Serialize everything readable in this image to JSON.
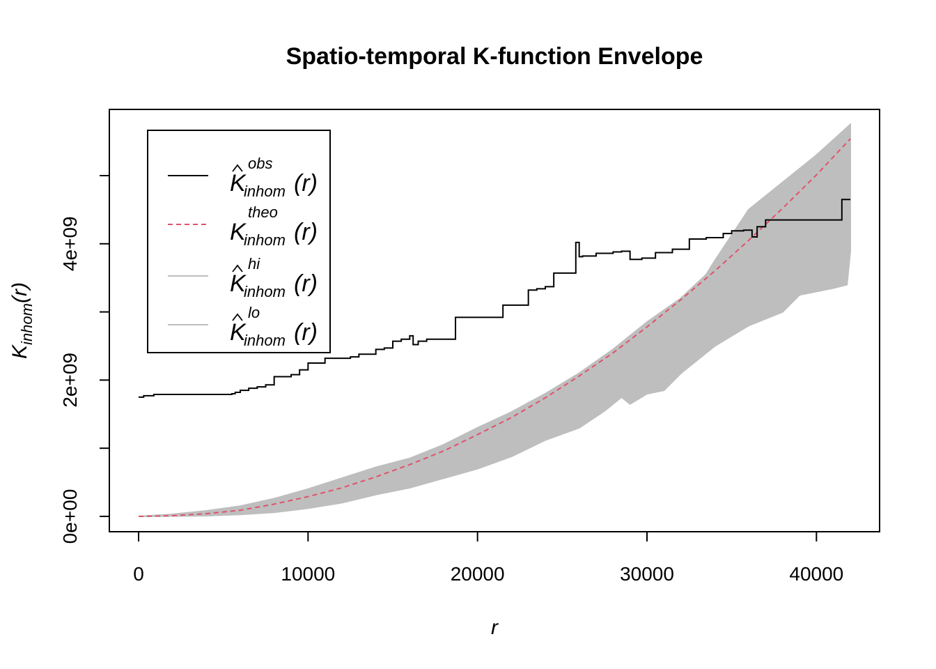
{
  "chart_data": {
    "type": "line",
    "title": "Spatio-temporal K-function Envelope",
    "xlabel": "r",
    "ylabel": {
      "base": "K",
      "sub": "inhom",
      "arg": "(r)"
    },
    "xlim": [
      0,
      42000
    ],
    "ylim": [
      0,
      5000000000
    ],
    "x_ticks": [
      0,
      10000,
      20000,
      30000,
      40000
    ],
    "x_tick_labels": [
      "0",
      "10000",
      "20000",
      "30000",
      "40000"
    ],
    "y_ticks": [
      0,
      1000000000,
      2000000000,
      3000000000,
      4000000000,
      5000000000
    ],
    "y_tick_labels": [
      "0e+00",
      "",
      "2e+09",
      "",
      "4e+09",
      ""
    ],
    "grid": false,
    "legend_position": "top-left",
    "legend": [
      {
        "key": "obs",
        "base": "K",
        "hat": true,
        "sup": "obs",
        "sub": "inhom",
        "arg": "(r)",
        "color": "#000000",
        "dash": "solid"
      },
      {
        "key": "theo",
        "base": "K",
        "hat": false,
        "sup": "theo",
        "sub": "inhom",
        "arg": "(r)",
        "color": "#df536b",
        "dash": "dashed"
      },
      {
        "key": "hi",
        "base": "K",
        "hat": true,
        "sup": "hi",
        "sub": "inhom",
        "arg": "(r)",
        "color": "#bebebe",
        "dash": "solid"
      },
      {
        "key": "lo",
        "base": "K",
        "hat": true,
        "sup": "lo",
        "sub": "inhom",
        "arg": "(r)",
        "color": "#bebebe",
        "dash": "solid"
      }
    ],
    "series": {
      "obs": {
        "color": "#000000",
        "x": [
          0,
          300,
          900,
          5500,
          5700,
          6000,
          6500,
          7000,
          7500,
          8000,
          9000,
          9500,
          10000,
          11000,
          12500,
          13000,
          14000,
          14500,
          15000,
          15500,
          16000,
          16200,
          16500,
          17000,
          18000,
          18500,
          18700,
          19500,
          21000,
          21500,
          22000,
          23000,
          23500,
          24000,
          24500,
          25000,
          25500,
          25800,
          26000,
          26200,
          27000,
          28000,
          28500,
          29000,
          29700,
          30500,
          31500,
          32500,
          33500,
          34500,
          35000,
          35700,
          36200,
          36500,
          37000,
          37500,
          39000,
          41000,
          41500,
          42000
        ],
        "y": [
          1750000000,
          1770000000,
          1790000000,
          1800000000,
          1820000000,
          1850000000,
          1880000000,
          1900000000,
          1930000000,
          2050000000,
          2080000000,
          2150000000,
          2250000000,
          2320000000,
          2340000000,
          2380000000,
          2450000000,
          2470000000,
          2570000000,
          2600000000,
          2650000000,
          2520000000,
          2570000000,
          2600000000,
          2600000000,
          2600000000,
          2920000000,
          2920000000,
          2920000000,
          3100000000,
          3100000000,
          3320000000,
          3340000000,
          3370000000,
          3570000000,
          3570000000,
          3570000000,
          4020000000,
          3810000000,
          3820000000,
          3860000000,
          3880000000,
          3890000000,
          3770000000,
          3790000000,
          3870000000,
          3920000000,
          4070000000,
          4090000000,
          4150000000,
          4190000000,
          4200000000,
          4100000000,
          4250000000,
          4350000000,
          4350000000,
          4350000000,
          4350000000,
          4650000000,
          4650000000
        ]
      },
      "theo": {
        "color": "#df536b",
        "x": [
          0,
          2000,
          4000,
          6000,
          8000,
          10000,
          12000,
          14000,
          16000,
          18000,
          20000,
          22000,
          24000,
          26000,
          28000,
          30000,
          32000,
          34000,
          36000,
          38000,
          40000,
          42000
        ],
        "y": [
          0,
          10000000,
          40000000,
          90000000,
          180000000,
          290000000,
          420000000,
          580000000,
          760000000,
          960000000,
          1200000000,
          1450000000,
          1740000000,
          2060000000,
          2400000000,
          2780000000,
          3180000000,
          3600000000,
          4050000000,
          4520000000,
          5010000000,
          5540000000
        ]
      },
      "hi": {
        "color": "#bebebe",
        "x": [
          0,
          2000,
          4000,
          6000,
          8000,
          10000,
          12000,
          14000,
          16000,
          18000,
          20000,
          22000,
          24000,
          26000,
          28000,
          30000,
          32000,
          33500,
          34000,
          36000,
          38000,
          40000,
          42000
        ],
        "y": [
          0,
          30000000,
          80000000,
          150000000,
          260000000,
          400000000,
          560000000,
          720000000,
          850000000,
          1050000000,
          1300000000,
          1530000000,
          1800000000,
          2100000000,
          2450000000,
          2850000000,
          3200000000,
          3550000000,
          3750000000,
          4500000000,
          4900000000,
          5300000000,
          5750000000
        ]
      },
      "lo": {
        "color": "#bebebe",
        "x": [
          0,
          2000,
          4000,
          6000,
          8000,
          10000,
          12000,
          14000,
          16000,
          18000,
          20000,
          22000,
          24000,
          26000,
          27500,
          28500,
          29000,
          30000,
          31000,
          32000,
          34000,
          36000,
          38000,
          39000,
          40000,
          41000,
          41800,
          42000
        ],
        "y": [
          0,
          5000000,
          10000000,
          30000000,
          60000000,
          120000000,
          200000000,
          320000000,
          420000000,
          560000000,
          700000000,
          880000000,
          1120000000,
          1300000000,
          1550000000,
          1750000000,
          1650000000,
          1800000000,
          1850000000,
          2100000000,
          2500000000,
          2800000000,
          3000000000,
          3250000000,
          3300000000,
          3350000000,
          3400000000,
          3900000000
        ]
      }
    }
  }
}
